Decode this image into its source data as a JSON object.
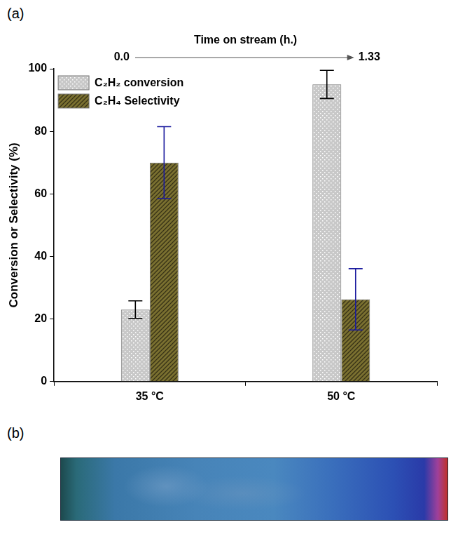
{
  "panel_labels": [
    "(a)",
    "(b)"
  ],
  "chart_data": {
    "type": "bar",
    "categories": [
      "35 °C",
      "50 °C"
    ],
    "series": [
      {
        "name": "C₂H₂ conversion",
        "color": "#c8c8c8",
        "values": [
          23,
          95
        ],
        "errors": [
          2.8,
          4.5
        ]
      },
      {
        "name": "C₂H₄ Selectivity",
        "color": "#7a7030",
        "values": [
          70,
          26.3
        ],
        "errors": [
          11.5,
          9.8
        ]
      }
    ],
    "y_label": "Conversion or Selectivity (%)",
    "ylim": [
      0,
      100
    ],
    "yticks": [
      0,
      20,
      40,
      60,
      80,
      100
    ],
    "grid": false,
    "legend": "upper left",
    "time_axis": {
      "label": "Time on stream (h.)",
      "ticks": [
        {
          "value": 0,
          "label": "0.0"
        },
        {
          "value": 1.33,
          "label": "1.33"
        }
      ]
    }
  }
}
